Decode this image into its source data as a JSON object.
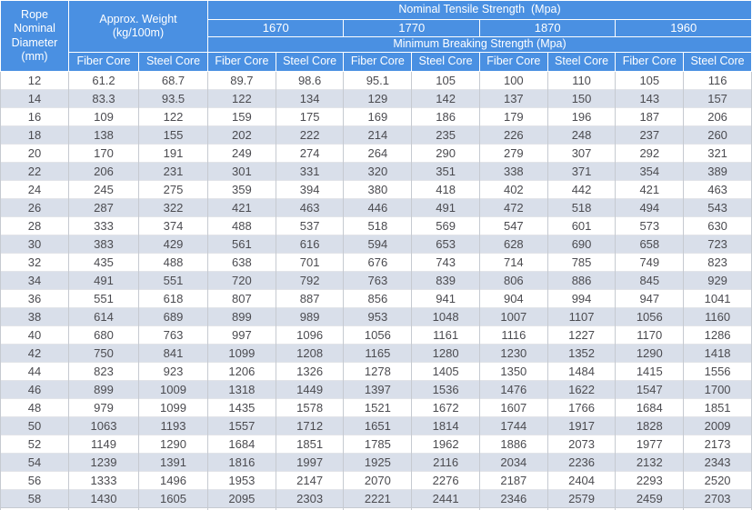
{
  "header": {
    "diameter_label": "Rope\nNominal\nDiameter\n(mm)",
    "weight_label": "Approx. Weight\n(kg/100m)",
    "tensile_title": "Nominal Tensile Strength  (Mpa)",
    "breaking_title": "Minimum Breaking Strength (Mpa)",
    "tensile_grades": [
      "1670",
      "1770",
      "1870",
      "1960"
    ],
    "core_labels": [
      "Fiber Core",
      "Steel Core"
    ]
  },
  "colors": {
    "header_bg": "#4a90e2",
    "header_text": "#ffffff",
    "row_bg": "#ffffff",
    "row_alt_bg": "#d9dfea",
    "body_text": "#4b4b50"
  },
  "columns_semantics": [
    "rope_nominal_diameter_mm",
    "approx_weight_fiber_core",
    "approx_weight_steel_core",
    "mbs_1670_fiber_core",
    "mbs_1670_steel_core",
    "mbs_1770_fiber_core",
    "mbs_1770_steel_core",
    "mbs_1870_fiber_core",
    "mbs_1870_steel_core",
    "mbs_1960_fiber_core",
    "mbs_1960_steel_core"
  ],
  "rows": [
    [
      "12",
      "61.2",
      "68.7",
      "89.7",
      "98.6",
      "95.1",
      "105",
      "100",
      "110",
      "105",
      "116"
    ],
    [
      "14",
      "83.3",
      "93.5",
      "122",
      "134",
      "129",
      "142",
      "137",
      "150",
      "143",
      "157"
    ],
    [
      "16",
      "109",
      "122",
      "159",
      "175",
      "169",
      "186",
      "179",
      "196",
      "187",
      "206"
    ],
    [
      "18",
      "138",
      "155",
      "202",
      "222",
      "214",
      "235",
      "226",
      "248",
      "237",
      "260"
    ],
    [
      "20",
      "170",
      "191",
      "249",
      "274",
      "264",
      "290",
      "279",
      "307",
      "292",
      "321"
    ],
    [
      "22",
      "206",
      "231",
      "301",
      "331",
      "320",
      "351",
      "338",
      "371",
      "354",
      "389"
    ],
    [
      "24",
      "245",
      "275",
      "359",
      "394",
      "380",
      "418",
      "402",
      "442",
      "421",
      "463"
    ],
    [
      "26",
      "287",
      "322",
      "421",
      "463",
      "446",
      "491",
      "472",
      "518",
      "494",
      "543"
    ],
    [
      "28",
      "333",
      "374",
      "488",
      "537",
      "518",
      "569",
      "547",
      "601",
      "573",
      "630"
    ],
    [
      "30",
      "383",
      "429",
      "561",
      "616",
      "594",
      "653",
      "628",
      "690",
      "658",
      "723"
    ],
    [
      "32",
      "435",
      "488",
      "638",
      "701",
      "676",
      "743",
      "714",
      "785",
      "749",
      "823"
    ],
    [
      "34",
      "491",
      "551",
      "720",
      "792",
      "763",
      "839",
      "806",
      "886",
      "845",
      "929"
    ],
    [
      "36",
      "551",
      "618",
      "807",
      "887",
      "856",
      "941",
      "904",
      "994",
      "947",
      "1041"
    ],
    [
      "38",
      "614",
      "689",
      "899",
      "989",
      "953",
      "1048",
      "1007",
      "1107",
      "1056",
      "1160"
    ],
    [
      "40",
      "680",
      "763",
      "997",
      "1096",
      "1056",
      "1161",
      "1116",
      "1227",
      "1170",
      "1286"
    ],
    [
      "42",
      "750",
      "841",
      "1099",
      "1208",
      "1165",
      "1280",
      "1230",
      "1352",
      "1290",
      "1418"
    ],
    [
      "44",
      "823",
      "923",
      "1206",
      "1326",
      "1278",
      "1405",
      "1350",
      "1484",
      "1415",
      "1556"
    ],
    [
      "46",
      "899",
      "1009",
      "1318",
      "1449",
      "1397",
      "1536",
      "1476",
      "1622",
      "1547",
      "1700"
    ],
    [
      "48",
      "979",
      "1099",
      "1435",
      "1578",
      "1521",
      "1672",
      "1607",
      "1766",
      "1684",
      "1851"
    ],
    [
      "50",
      "1063",
      "1193",
      "1557",
      "1712",
      "1651",
      "1814",
      "1744",
      "1917",
      "1828",
      "2009"
    ],
    [
      "52",
      "1149",
      "1290",
      "1684",
      "1851",
      "1785",
      "1962",
      "1886",
      "2073",
      "1977",
      "2173"
    ],
    [
      "54",
      "1239",
      "1391",
      "1816",
      "1997",
      "1925",
      "2116",
      "2034",
      "2236",
      "2132",
      "2343"
    ],
    [
      "56",
      "1333",
      "1496",
      "1953",
      "2147",
      "2070",
      "2276",
      "2187",
      "2404",
      "2293",
      "2520"
    ],
    [
      "58",
      "1430",
      "1605",
      "2095",
      "2303",
      "2221",
      "2441",
      "2346",
      "2579",
      "2459",
      "2703"
    ]
  ]
}
